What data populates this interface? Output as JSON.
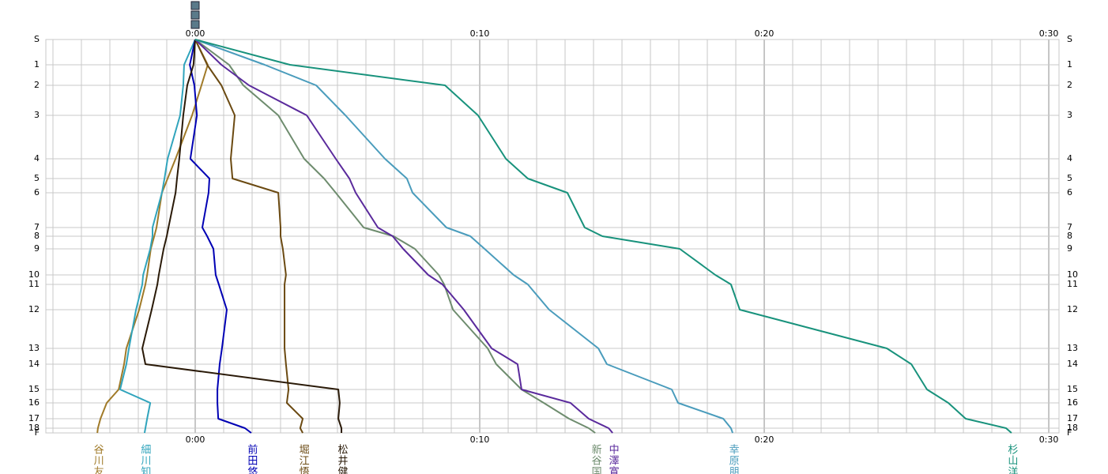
{
  "chart_data": {
    "type": "line",
    "xlim": [
      -5.25,
      30.36
    ],
    "xticks": [
      {
        "value": 0,
        "label": "0:00"
      },
      {
        "value": 10,
        "label": "0:10"
      },
      {
        "value": 20,
        "label": "0:20"
      },
      {
        "value": 30,
        "label": "0:30"
      }
    ],
    "ylim": [
      0,
      498
    ],
    "yticks": [
      {
        "value": 0,
        "label": "S"
      },
      32,
      58,
      96,
      151,
      176,
      194,
      238,
      249,
      265,
      298,
      310,
      342,
      391,
      411,
      443,
      460,
      480,
      492,
      {
        "value": 498,
        "label": "F"
      }
    ],
    "ytick_labels": [
      "S",
      "1",
      "2",
      "3",
      "4",
      "5",
      "6",
      "7",
      "8",
      "9",
      "10",
      "11",
      "12",
      "13",
      "14",
      "15",
      "16",
      "17",
      "18",
      "F"
    ],
    "grid": true,
    "series": [
      {
        "name": "谷川友",
        "color": "#a07a28",
        "values": [
          0,
          0.44,
          0.22,
          -0.11,
          -0.69,
          -0.97,
          -1.17,
          -1.36,
          -1.44,
          -1.56,
          -1.69,
          -1.75,
          -1.97,
          -2.42,
          -2.5,
          -2.69,
          -3.11,
          -3.33,
          -3.42,
          -3.44
        ]
      },
      {
        "name": "細川知",
        "color": "#30a4bc",
        "values": [
          0,
          -0.39,
          -0.42,
          -0.53,
          -0.97,
          -1.08,
          -1.17,
          -1.5,
          -1.5,
          -1.58,
          -1.83,
          -1.86,
          -2.08,
          -2.33,
          -2.42,
          -2.64,
          -1.58,
          -1.69,
          -1.75,
          -1.78
        ]
      },
      {
        "name": "前田悠",
        "color": "#0000b4",
        "values": [
          0,
          -0.19,
          -0.03,
          0.06,
          -0.17,
          0.5,
          0.47,
          0.25,
          0.42,
          0.64,
          0.72,
          0.83,
          1.11,
          0.94,
          0.86,
          0.78,
          0.78,
          0.81,
          1.75,
          1.97
        ]
      },
      {
        "name": "堀江悟",
        "color": "#6b4a12",
        "values": [
          0,
          0.42,
          0.92,
          1.39,
          1.25,
          1.31,
          2.92,
          3,
          3,
          3.08,
          3.19,
          3.14,
          3.14,
          3.14,
          3.19,
          3.28,
          3.22,
          3.78,
          3.69,
          3.78
        ]
      },
      {
        "name": "松井健",
        "color": "#2a1a08",
        "values": [
          0,
          -0.06,
          -0.28,
          -0.42,
          -0.56,
          -0.64,
          -0.69,
          -0.94,
          -1,
          -1.11,
          -1.28,
          -1.33,
          -1.53,
          -1.86,
          -1.75,
          5.03,
          5.08,
          5.03,
          5.14,
          5.14
        ]
      },
      {
        "name": "新谷国",
        "color": "#6e8c6e",
        "values": [
          0,
          1.19,
          1.69,
          2.92,
          3.83,
          4.53,
          4.94,
          5.92,
          6.97,
          7.72,
          8.56,
          8.75,
          9.06,
          10.28,
          10.58,
          11.47,
          12.25,
          13.14,
          13.83,
          14.06
        ]
      },
      {
        "name": "中澤寛",
        "color": "#5a2a9c",
        "values": [
          0,
          0.92,
          1.89,
          3.92,
          4.94,
          5.42,
          5.64,
          6.42,
          6.94,
          7.31,
          8.19,
          8.69,
          9.44,
          10.42,
          11.33,
          11.47,
          13.19,
          13.83,
          14.53,
          14.67
        ]
      },
      {
        "name": "幸原朋",
        "color": "#4a9cbc",
        "values": [
          0,
          2.44,
          4.25,
          5.28,
          6.67,
          7.44,
          7.64,
          8.83,
          9.67,
          10.17,
          11.19,
          11.69,
          12.44,
          14.17,
          14.47,
          16.75,
          16.97,
          18.56,
          18.83,
          18.89
        ]
      },
      {
        "name": "杉山洋",
        "color": "#18927c",
        "values": [
          0,
          3.33,
          8.78,
          9.94,
          10.92,
          11.69,
          13.08,
          13.69,
          14.31,
          17.03,
          18.28,
          18.83,
          19.14,
          24.31,
          25.17,
          25.72,
          26.47,
          27.08,
          28.5,
          28.69
        ]
      }
    ]
  }
}
